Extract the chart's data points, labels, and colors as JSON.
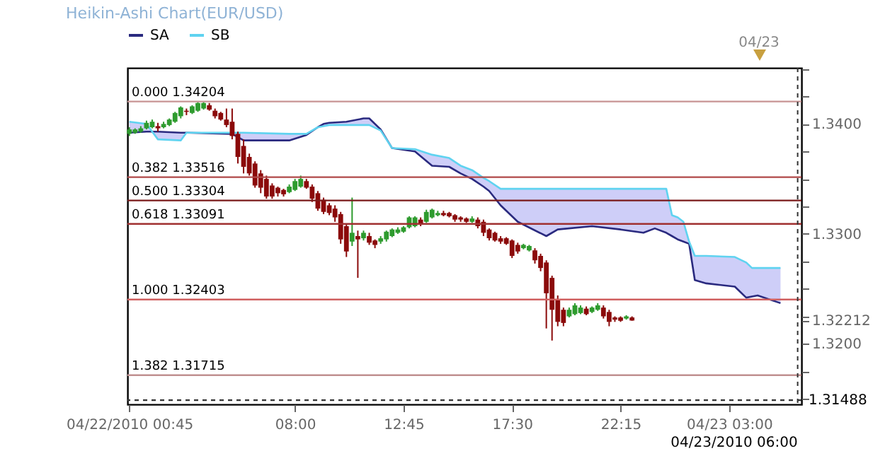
{
  "chart_data": {
    "type": "candlestick",
    "title": "Heikin-Ashi Chart(EUR/USD)",
    "x": [
      "2010-04-22T00:45",
      "2010-04-22T01:00",
      "2010-04-22T01:15",
      "2010-04-22T01:30",
      "2010-04-22T01:45",
      "2010-04-22T02:00",
      "2010-04-22T02:15",
      "2010-04-22T02:30",
      "2010-04-22T02:45",
      "2010-04-22T03:00",
      "2010-04-22T03:15",
      "2010-04-22T03:30",
      "2010-04-22T03:45",
      "2010-04-22T04:00",
      "2010-04-22T04:15",
      "2010-04-22T04:30",
      "2010-04-22T04:45",
      "2010-04-22T05:00",
      "2010-04-22T05:15",
      "2010-04-22T05:30",
      "2010-04-22T05:45",
      "2010-04-22T06:00",
      "2010-04-22T06:15",
      "2010-04-22T06:30",
      "2010-04-22T06:45",
      "2010-04-22T07:00",
      "2010-04-22T07:15",
      "2010-04-22T07:30",
      "2010-04-22T07:45",
      "2010-04-22T08:00",
      "2010-04-22T08:15",
      "2010-04-22T08:30",
      "2010-04-22T08:45",
      "2010-04-22T09:00",
      "2010-04-22T09:15",
      "2010-04-22T09:30",
      "2010-04-22T09:45",
      "2010-04-22T10:00",
      "2010-04-22T10:15",
      "2010-04-22T10:30",
      "2010-04-22T10:45",
      "2010-04-22T11:00",
      "2010-04-22T11:15",
      "2010-04-22T11:30",
      "2010-04-22T11:45",
      "2010-04-22T12:00",
      "2010-04-22T12:15",
      "2010-04-22T12:30",
      "2010-04-22T12:45",
      "2010-04-22T13:00",
      "2010-04-22T13:15",
      "2010-04-22T13:30",
      "2010-04-22T13:45",
      "2010-04-22T14:00",
      "2010-04-22T14:15",
      "2010-04-22T14:30",
      "2010-04-22T14:45",
      "2010-04-22T15:00",
      "2010-04-22T15:15",
      "2010-04-22T15:30",
      "2010-04-22T15:45",
      "2010-04-22T16:00",
      "2010-04-22T16:15",
      "2010-04-22T16:30",
      "2010-04-22T16:45",
      "2010-04-22T17:00",
      "2010-04-22T17:15",
      "2010-04-22T17:30",
      "2010-04-22T17:45",
      "2010-04-22T18:00",
      "2010-04-22T18:15",
      "2010-04-22T18:30",
      "2010-04-22T18:45",
      "2010-04-22T19:00",
      "2010-04-22T19:15",
      "2010-04-22T19:30",
      "2010-04-22T19:45",
      "2010-04-22T20:00",
      "2010-04-22T20:15",
      "2010-04-22T20:30",
      "2010-04-22T20:45",
      "2010-04-22T21:00",
      "2010-04-22T21:15",
      "2010-04-22T21:30",
      "2010-04-22T21:45",
      "2010-04-22T22:00",
      "2010-04-22T22:15",
      "2010-04-22T22:30",
      "2010-04-22T22:45"
    ],
    "ohlc": [
      [
        1.3391,
        1.3397,
        1.3389,
        1.3395
      ],
      [
        1.3392,
        1.3396,
        1.3391,
        1.3395
      ],
      [
        1.3393,
        1.3398,
        1.3392,
        1.3396
      ],
      [
        1.3396,
        1.3403,
        1.3395,
        1.3401
      ],
      [
        1.3397,
        1.3404,
        1.3396,
        1.3402
      ],
      [
        1.3398,
        1.3401,
        1.3393,
        1.3396
      ],
      [
        1.3397,
        1.3402,
        1.3396,
        1.34
      ],
      [
        1.3399,
        1.3405,
        1.3398,
        1.3404
      ],
      [
        1.3402,
        1.3411,
        1.3401,
        1.341
      ],
      [
        1.3407,
        1.3416,
        1.3405,
        1.3415
      ],
      [
        1.3412,
        1.3414,
        1.3408,
        1.3411
      ],
      [
        1.341,
        1.3417,
        1.3409,
        1.3416
      ],
      [
        1.3412,
        1.342,
        1.3411,
        1.3419
      ],
      [
        1.3414,
        1.342,
        1.3413,
        1.3419
      ],
      [
        1.3417,
        1.3419,
        1.3412,
        1.3413
      ],
      [
        1.3412,
        1.3414,
        1.3405,
        1.3407
      ],
      [
        1.341,
        1.3411,
        1.3403,
        1.3404
      ],
      [
        1.3404,
        1.3414,
        1.3397,
        1.3399
      ],
      [
        1.3402,
        1.3414,
        1.3386,
        1.3389
      ],
      [
        1.3391,
        1.3393,
        1.3364,
        1.337
      ],
      [
        1.338,
        1.3386,
        1.3355,
        1.3361
      ],
      [
        1.337,
        1.3373,
        1.3353,
        1.3355
      ],
      [
        1.3364,
        1.3366,
        1.3342,
        1.3344
      ],
      [
        1.3355,
        1.3358,
        1.3337,
        1.3342
      ],
      [
        1.335,
        1.3353,
        1.3332,
        1.3334
      ],
      [
        1.3344,
        1.3346,
        1.3332,
        1.3334
      ],
      [
        1.3342,
        1.3343,
        1.3334,
        1.3337
      ],
      [
        1.334,
        1.3341,
        1.3334,
        1.3336
      ],
      [
        1.3338,
        1.3345,
        1.3337,
        1.3343
      ],
      [
        1.334,
        1.335,
        1.3339,
        1.3348
      ],
      [
        1.3343,
        1.3353,
        1.3342,
        1.335
      ],
      [
        1.3348,
        1.335,
        1.3341,
        1.3342
      ],
      [
        1.3343,
        1.3345,
        1.3329,
        1.3332
      ],
      [
        1.3337,
        1.3339,
        1.3321,
        1.3323
      ],
      [
        1.3331,
        1.3333,
        1.3318,
        1.332
      ],
      [
        1.3326,
        1.3328,
        1.3317,
        1.3319
      ],
      [
        1.3323,
        1.3326,
        1.3311,
        1.3315
      ],
      [
        1.3318,
        1.332,
        1.3291,
        1.3295
      ],
      [
        1.3307,
        1.3309,
        1.3279,
        1.3284
      ],
      [
        1.3293,
        1.3333,
        1.3289,
        1.3301
      ],
      [
        1.3298,
        1.3303,
        1.326,
        1.3295
      ],
      [
        1.3296,
        1.3303,
        1.3294,
        1.3301
      ],
      [
        1.3298,
        1.3301,
        1.329,
        1.3292
      ],
      [
        1.3294,
        1.3295,
        1.3287,
        1.329
      ],
      [
        1.3293,
        1.3298,
        1.3291,
        1.3296
      ],
      [
        1.3295,
        1.3303,
        1.3293,
        1.3302
      ],
      [
        1.3298,
        1.3305,
        1.3297,
        1.3304
      ],
      [
        1.3301,
        1.3306,
        1.33,
        1.3304
      ],
      [
        1.3302,
        1.3307,
        1.3301,
        1.3306
      ],
      [
        1.3306,
        1.3316,
        1.3305,
        1.3315
      ],
      [
        1.3307,
        1.3316,
        1.3306,
        1.3315
      ],
      [
        1.3313,
        1.3315,
        1.3307,
        1.3309
      ],
      [
        1.3311,
        1.3322,
        1.331,
        1.332
      ],
      [
        1.3315,
        1.3323,
        1.3314,
        1.3322
      ],
      [
        1.3317,
        1.3321,
        1.3316,
        1.3319
      ],
      [
        1.3319,
        1.3321,
        1.3316,
        1.3317
      ],
      [
        1.3319,
        1.332,
        1.3315,
        1.3316
      ],
      [
        1.3317,
        1.3318,
        1.3311,
        1.3313
      ],
      [
        1.3315,
        1.3316,
        1.3311,
        1.3313
      ],
      [
        1.3314,
        1.3315,
        1.331,
        1.3311
      ],
      [
        1.3311,
        1.3316,
        1.331,
        1.3314
      ],
      [
        1.3313,
        1.3315,
        1.3305,
        1.3307
      ],
      [
        1.3311,
        1.3313,
        1.3298,
        1.3301
      ],
      [
        1.3304,
        1.3305,
        1.3294,
        1.3296
      ],
      [
        1.3301,
        1.3302,
        1.3293,
        1.3294
      ],
      [
        1.3296,
        1.3298,
        1.3291,
        1.3293
      ],
      [
        1.3296,
        1.3297,
        1.329,
        1.3291
      ],
      [
        1.3294,
        1.3295,
        1.3278,
        1.328
      ],
      [
        1.329,
        1.3292,
        1.3282,
        1.3284
      ],
      [
        1.3287,
        1.3291,
        1.3286,
        1.329
      ],
      [
        1.3285,
        1.329,
        1.3284,
        1.3289
      ],
      [
        1.3285,
        1.3287,
        1.3273,
        1.3276
      ],
      [
        1.328,
        1.3282,
        1.3266,
        1.3269
      ],
      [
        1.3274,
        1.3276,
        1.3214,
        1.3246
      ],
      [
        1.326,
        1.3262,
        1.3203,
        1.3231
      ],
      [
        1.324,
        1.3244,
        1.3216,
        1.322
      ],
      [
        1.3231,
        1.3233,
        1.3216,
        1.3219
      ],
      [
        1.3225,
        1.3233,
        1.3224,
        1.3231
      ],
      [
        1.3227,
        1.3237,
        1.3226,
        1.3235
      ],
      [
        1.3228,
        1.3235,
        1.3227,
        1.3233
      ],
      [
        1.3232,
        1.3234,
        1.3226,
        1.3227
      ],
      [
        1.3229,
        1.3234,
        1.3228,
        1.3233
      ],
      [
        1.3231,
        1.3237,
        1.323,
        1.3235
      ],
      [
        1.3233,
        1.3235,
        1.3223,
        1.3225
      ],
      [
        1.3229,
        1.3231,
        1.3216,
        1.322
      ],
      [
        1.3224,
        1.3225,
        1.322,
        1.3222
      ],
      [
        1.3224,
        1.3225,
        1.322,
        1.3221
      ],
      [
        1.3223,
        1.3226,
        1.3222,
        1.3225
      ],
      [
        1.3224,
        1.3225,
        1.3221,
        1.32212
      ]
    ],
    "series": [
      {
        "name": "SA",
        "type": "line",
        "color": "#2a2a7f",
        "x": [
          "2010-04-22T00:45",
          "2010-04-22T01:30",
          "2010-04-22T02:00",
          "2010-04-22T03:00",
          "2010-04-22T03:15",
          "2010-04-22T05:15",
          "2010-04-22T05:45",
          "2010-04-22T07:45",
          "2010-04-22T08:30",
          "2010-04-22T09:00",
          "2010-04-22T09:15",
          "2010-04-22T09:30",
          "2010-04-22T10:15",
          "2010-04-22T11:00",
          "2010-04-22T11:15",
          "2010-04-22T11:45",
          "2010-04-22T12:15",
          "2010-04-22T13:15",
          "2010-04-22T14:00",
          "2010-04-22T14:45",
          "2010-04-22T15:15",
          "2010-04-22T15:45",
          "2010-04-22T16:15",
          "2010-04-22T16:30",
          "2010-04-22T17:00",
          "2010-04-22T17:45",
          "2010-04-22T19:00",
          "2010-04-22T19:30",
          "2010-04-22T21:00",
          "2010-04-22T22:15",
          "2010-04-22T23:15",
          "2010-04-22T23:45",
          "2010-04-23T00:15",
          "2010-04-23T00:30",
          "2010-04-23T00:45",
          "2010-04-23T01:00",
          "2010-04-23T01:15",
          "2010-04-23T01:30",
          "2010-04-23T02:00",
          "2010-04-23T03:15",
          "2010-04-23T03:45",
          "2010-04-23T04:00",
          "2010-04-23T04:15",
          "2010-04-23T05:15"
        ],
        "values": [
          1.3392,
          1.3393,
          1.3393,
          1.3392,
          1.3392,
          1.3391,
          1.3385,
          1.3385,
          1.339,
          1.3397,
          1.34,
          1.3401,
          1.3402,
          1.3405,
          1.3405,
          1.3395,
          1.3378,
          1.3375,
          1.3362,
          1.3361,
          1.3355,
          1.335,
          1.3343,
          1.3339,
          1.3326,
          1.3311,
          1.3298,
          1.3304,
          1.3307,
          1.3304,
          1.3301,
          1.3305,
          1.3301,
          1.3298,
          1.3295,
          1.3293,
          1.3291,
          1.3258,
          1.3255,
          1.3252,
          1.3242,
          1.3243,
          1.3244,
          1.3237
        ]
      },
      {
        "name": "SB",
        "type": "line",
        "color": "#5fd3f0",
        "x": [
          "2010-04-22T00:45",
          "2010-04-22T01:30",
          "2010-04-22T02:00",
          "2010-04-22T03:00",
          "2010-04-22T03:15",
          "2010-04-22T05:15",
          "2010-04-22T05:45",
          "2010-04-22T07:45",
          "2010-04-22T08:30",
          "2010-04-22T09:00",
          "2010-04-22T09:15",
          "2010-04-22T09:30",
          "2010-04-22T10:15",
          "2010-04-22T11:00",
          "2010-04-22T11:15",
          "2010-04-22T11:45",
          "2010-04-22T12:15",
          "2010-04-22T13:15",
          "2010-04-22T14:00",
          "2010-04-22T14:45",
          "2010-04-22T15:15",
          "2010-04-22T15:45",
          "2010-04-22T16:15",
          "2010-04-22T16:30",
          "2010-04-22T17:00",
          "2010-04-22T17:45",
          "2010-04-22T19:00",
          "2010-04-22T19:30",
          "2010-04-22T21:00",
          "2010-04-22T22:15",
          "2010-04-22T23:15",
          "2010-04-22T23:45",
          "2010-04-23T00:15",
          "2010-04-23T00:30",
          "2010-04-23T00:45",
          "2010-04-23T01:00",
          "2010-04-23T01:15",
          "2010-04-23T01:30",
          "2010-04-23T02:00",
          "2010-04-23T03:15",
          "2010-04-23T03:45",
          "2010-04-23T04:00",
          "2010-04-23T04:15",
          "2010-04-23T05:15"
        ],
        "values": [
          1.3402,
          1.34,
          1.3386,
          1.3385,
          1.3392,
          1.3392,
          1.3392,
          1.3391,
          1.3391,
          1.3397,
          1.3398,
          1.3399,
          1.3399,
          1.3399,
          1.3399,
          1.3394,
          1.3378,
          1.3377,
          1.3372,
          1.3369,
          1.3362,
          1.3358,
          1.3351,
          1.3348,
          1.3341,
          1.3341,
          1.3341,
          1.3341,
          1.3341,
          1.3341,
          1.3341,
          1.3341,
          1.3341,
          1.3317,
          1.3315,
          1.3311,
          1.3293,
          1.328,
          1.328,
          1.3279,
          1.3274,
          1.3269,
          1.3269,
          1.3269
        ]
      }
    ],
    "xlim": [
      "2010-04-22T00:40",
      "2010-04-23T06:10"
    ],
    "ylim": [
      1.3145,
      1.3451
    ],
    "xticks": [
      {
        "value": "2010-04-22T00:45",
        "label": "04/22/2010 00:45"
      },
      {
        "value": "2010-04-22T08:00",
        "label": "08:00"
      },
      {
        "value": "2010-04-22T12:45",
        "label": "12:45"
      },
      {
        "value": "2010-04-22T17:30",
        "label": "17:30"
      },
      {
        "value": "2010-04-22T22:15",
        "label": "22:15"
      },
      {
        "value": "2010-04-23T03:00",
        "label": "04/23 03:00"
      }
    ],
    "yticks": [
      {
        "value": 1.315,
        "label": null
      },
      {
        "value": 1.3175,
        "label": null
      },
      {
        "value": 1.32,
        "label": "1.3200"
      },
      {
        "value": 1.32212,
        "label": "1.32212"
      },
      {
        "value": 1.3225,
        "label": null
      },
      {
        "value": 1.325,
        "label": null
      },
      {
        "value": 1.3275,
        "label": null
      },
      {
        "value": 1.33,
        "label": "1.3300"
      },
      {
        "value": 1.3325,
        "label": null
      },
      {
        "value": 1.335,
        "label": null
      },
      {
        "value": 1.3375,
        "label": null
      },
      {
        "value": 1.34,
        "label": "1.3400"
      },
      {
        "value": 1.3425,
        "label": null
      },
      {
        "value": 1.345,
        "label": null
      }
    ],
    "ref_lines": [
      {
        "axis": "y",
        "value": 1.34204,
        "label": "0.000 1.34204",
        "color": "#c89494"
      },
      {
        "axis": "y",
        "value": 1.33516,
        "label": "0.382 1.33516",
        "color": "#b04848"
      },
      {
        "axis": "y",
        "value": 1.33304,
        "label": "0.500 1.33304",
        "color": "#7a1a1a"
      },
      {
        "axis": "y",
        "value": 1.33091,
        "label": "0.618 1.33091",
        "color": "#a03030"
      },
      {
        "axis": "y",
        "value": 1.32403,
        "label": "1.000 1.32403",
        "color": "#d06060"
      },
      {
        "axis": "y",
        "value": 1.31715,
        "label": "1.382 1.31715",
        "color": "#c09090"
      },
      {
        "axis": "y",
        "value": 1.31488,
        "label": "1.31488",
        "color": "#333333",
        "line_style": "dashed"
      },
      {
        "axis": "x",
        "value": "2010-04-23T06:00",
        "label": "04/23/2010 06:00",
        "color": "#333333",
        "line_style": "dashed"
      }
    ],
    "annotations": [
      "04/23"
    ],
    "legend": "top",
    "grid": false
  }
}
